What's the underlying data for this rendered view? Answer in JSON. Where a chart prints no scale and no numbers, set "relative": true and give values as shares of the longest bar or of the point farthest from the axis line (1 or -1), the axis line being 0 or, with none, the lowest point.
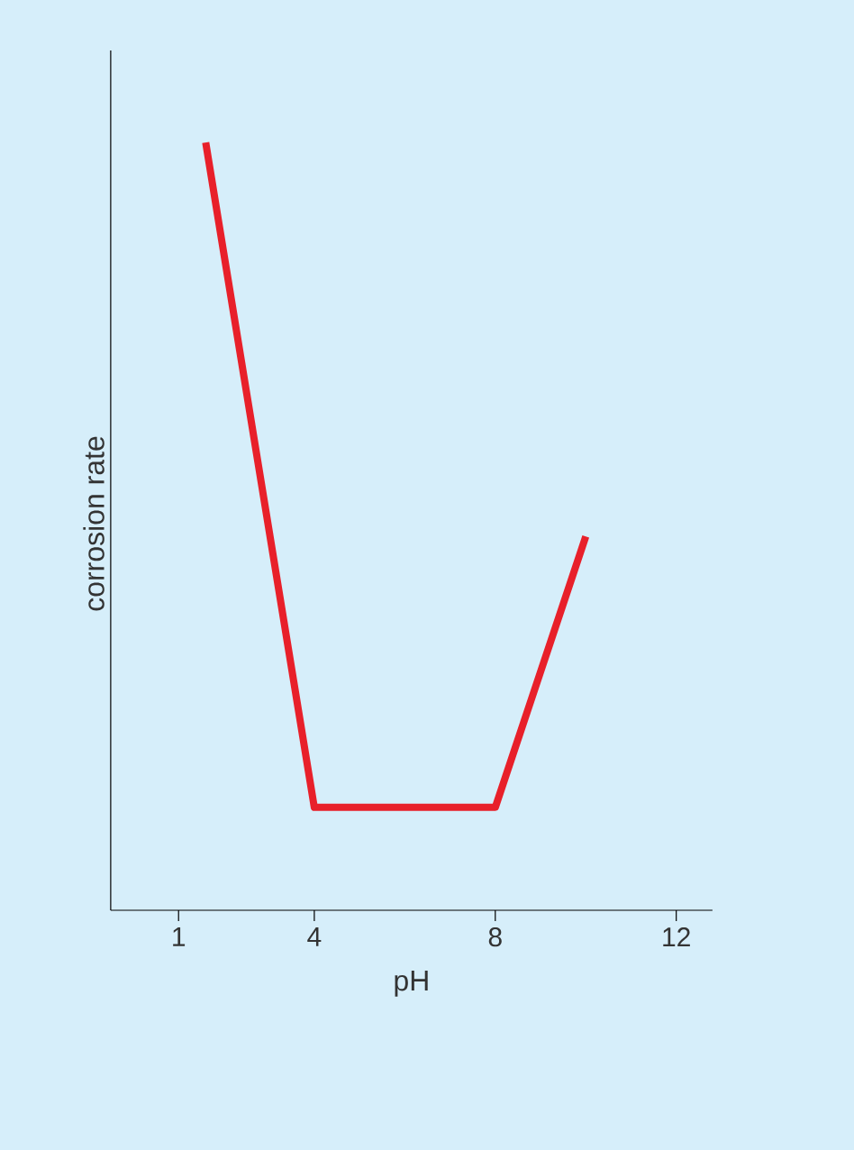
{
  "chart_data": {
    "type": "line",
    "xlabel": "pH",
    "ylabel": "corrosion rate",
    "relative": true,
    "x": [
      1.6,
      4,
      8,
      10
    ],
    "series": [
      {
        "color": "#e8202a",
        "values": [
          1,
          0.134,
          0.134,
          0.487
        ]
      }
    ],
    "xlim": [
      -0.5,
      12.8
    ],
    "xticks": [
      1,
      4,
      8,
      12
    ],
    "grid": false,
    "marker": "none",
    "line_style": "solid"
  }
}
